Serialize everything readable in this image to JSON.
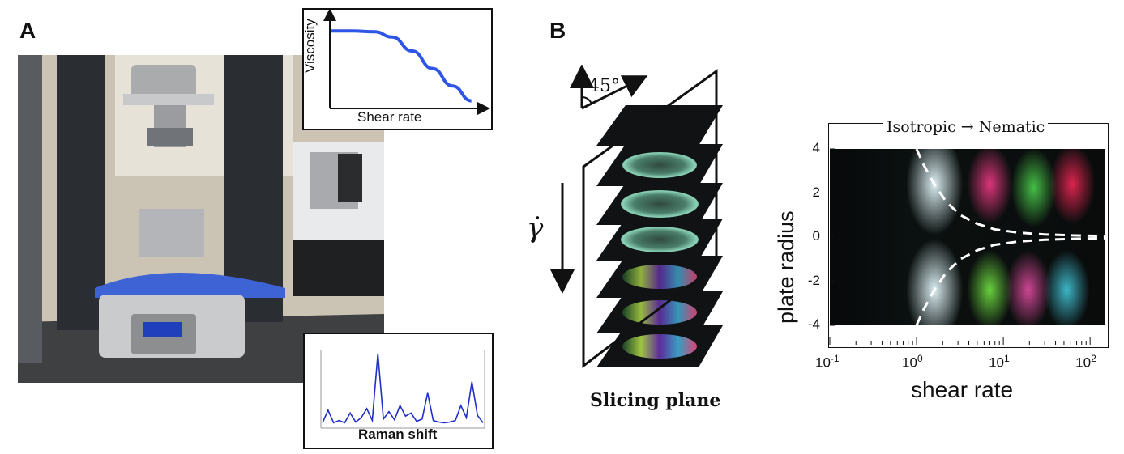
{
  "panel_a": {
    "label": "A",
    "viscosity_inset": {
      "ylabel": "Viscosity",
      "xlabel": "Shear rate"
    },
    "raman_inset": {
      "xlabel": "Raman shift"
    }
  },
  "panel_b": {
    "label": "B",
    "angle_label": "45°",
    "gamma_dot": "γ̇",
    "slicing_label": "Slicing plane"
  },
  "colors": {
    "viscosity_curve": "#2f55e6",
    "raman_curve": "#1f2fc8",
    "dashed_boundary": "#ffffff",
    "heatmap_background": "#050708"
  },
  "chart_data": [
    {
      "type": "line",
      "xlabel": "Shear rate",
      "ylabel": "Viscosity",
      "series": [
        {
          "values": [
            0.85,
            0.85,
            0.84,
            0.78,
            0.62,
            0.42,
            0.22,
            0.05
          ]
        }
      ],
      "x": [
        0,
        0.14,
        0.3,
        0.42,
        0.56,
        0.7,
        0.84,
        0.97
      ]
    },
    {
      "type": "line",
      "xlabel": "Raman shift",
      "series": [
        {
          "values": [
            0.05,
            0.22,
            0.05,
            0.08,
            0.05,
            0.18,
            0.06,
            0.12,
            0.24,
            0.08,
            0.98,
            0.1,
            0.2,
            0.09,
            0.28,
            0.14,
            0.18,
            0.07,
            0.1,
            0.45,
            0.08,
            0.06,
            0.05,
            0.06,
            0.08,
            0.28,
            0.12,
            0.6,
            0.15,
            0.05
          ]
        }
      ]
    },
    {
      "type": "heatmap",
      "title": "Isotropic → Nematic",
      "xlabel": "shear rate",
      "ylabel": "plate radius",
      "x_scale": "log",
      "xlim": [
        0.1,
        150
      ],
      "ylim": [
        -4,
        4
      ],
      "x_ticks": [
        {
          "base": "10",
          "exp": "-1"
        },
        {
          "base": "10",
          "exp": "0"
        },
        {
          "base": "10",
          "exp": "1"
        },
        {
          "base": "10",
          "exp": "2"
        }
      ],
      "y_ticks": [
        "4",
        "2",
        "0",
        "-2",
        "-4"
      ],
      "boundary_x": [
        1.0,
        1.2,
        1.6,
        2.2,
        3.2,
        5,
        8,
        15,
        30,
        60,
        100,
        150
      ],
      "boundary_y": [
        4.0,
        3.3,
        2.4,
        1.6,
        1.0,
        0.6,
        0.35,
        0.2,
        0.12,
        0.08,
        0.06,
        0.05
      ]
    }
  ]
}
